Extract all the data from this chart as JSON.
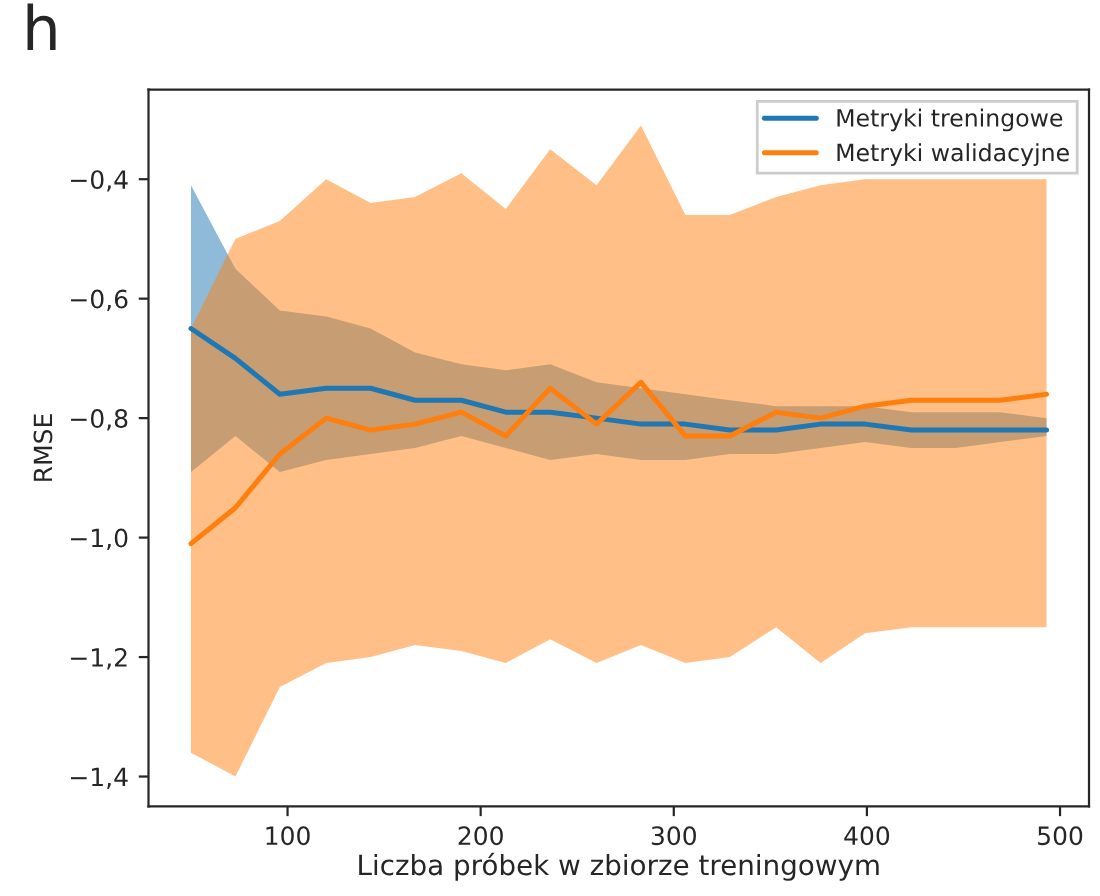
{
  "chart_data": {
    "type": "line",
    "title": "h",
    "xlabel": "Liczba próbek w zbiorze treningowym",
    "ylabel": "RMSE",
    "x": [
      50,
      73,
      96,
      120,
      143,
      166,
      190,
      213,
      236,
      260,
      283,
      306,
      329,
      353,
      376,
      399,
      423,
      446,
      469,
      493
    ],
    "series": [
      {
        "name": "Metryki treningowe",
        "color": "#1f77b4",
        "values": [
          -0.65,
          -0.7,
          -0.76,
          -0.75,
          -0.75,
          -0.77,
          -0.77,
          -0.79,
          -0.79,
          -0.8,
          -0.81,
          -0.81,
          -0.82,
          -0.82,
          -0.81,
          -0.81,
          -0.82,
          -0.82,
          -0.82,
          -0.82
        ],
        "upper": [
          -0.41,
          -0.55,
          -0.62,
          -0.63,
          -0.65,
          -0.69,
          -0.71,
          -0.72,
          -0.71,
          -0.74,
          -0.75,
          -0.76,
          -0.77,
          -0.78,
          -0.78,
          -0.78,
          -0.79,
          -0.79,
          -0.79,
          -0.8
        ],
        "lower": [
          -0.89,
          -0.83,
          -0.89,
          -0.87,
          -0.86,
          -0.85,
          -0.83,
          -0.85,
          -0.87,
          -0.86,
          -0.87,
          -0.87,
          -0.86,
          -0.86,
          -0.85,
          -0.84,
          -0.85,
          -0.85,
          -0.84,
          -0.83
        ]
      },
      {
        "name": "Metryki walidacyjne",
        "color": "#ff7f0e",
        "values": [
          -1.01,
          -0.95,
          -0.86,
          -0.8,
          -0.82,
          -0.81,
          -0.79,
          -0.83,
          -0.75,
          -0.81,
          -0.74,
          -0.83,
          -0.83,
          -0.79,
          -0.8,
          -0.78,
          -0.77,
          -0.77,
          -0.77,
          -0.76
        ],
        "upper": [
          -0.65,
          -0.5,
          -0.47,
          -0.4,
          -0.44,
          -0.43,
          -0.39,
          -0.45,
          -0.35,
          -0.41,
          -0.31,
          -0.46,
          -0.46,
          -0.43,
          -0.41,
          -0.4,
          -0.4,
          -0.4,
          -0.4,
          -0.4
        ],
        "lower": [
          -1.36,
          -1.4,
          -1.25,
          -1.21,
          -1.2,
          -1.18,
          -1.19,
          -1.21,
          -1.17,
          -1.21,
          -1.18,
          -1.21,
          -1.2,
          -1.15,
          -1.21,
          -1.16,
          -1.15,
          -1.15,
          -1.15,
          -1.15
        ]
      }
    ],
    "xlim": [
      28,
      515
    ],
    "xticks": [
      100,
      200,
      300,
      400,
      500
    ],
    "ylim": [
      -1.45,
      -0.25
    ],
    "yticks": [
      {
        "value": -1.4,
        "label": "−1,4"
      },
      {
        "value": -1.2,
        "label": "−1,2"
      },
      {
        "value": -1.0,
        "label": "−1,0"
      },
      {
        "value": -0.8,
        "label": "−0,8"
      },
      {
        "value": -0.6,
        "label": "−0,6"
      },
      {
        "value": -0.4,
        "label": "−0,4"
      }
    ],
    "grid": false,
    "legend": "top right",
    "line_style": "solid",
    "marker": "none"
  }
}
